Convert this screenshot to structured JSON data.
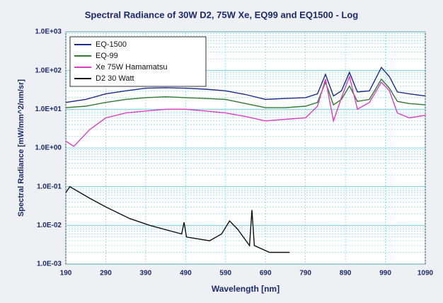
{
  "chart_data": {
    "type": "line",
    "title": "Spectral Radiance of 30W D2, 75W Xe, EQ99 and EQ1500 - Log",
    "x_label": "Wavelength [nm]",
    "y_label": "Spectral Radiance [mW/mm^2/nm/sr]",
    "xlim": [
      190,
      1090
    ],
    "xticks": [
      190,
      290,
      390,
      490,
      590,
      690,
      790,
      890,
      990,
      1090
    ],
    "ylim": [
      0.001,
      1000
    ],
    "log_y": true,
    "yticks": [
      {
        "value": 1000,
        "label": "1.0E+03"
      },
      {
        "value": 100,
        "label": "1.0E+02"
      },
      {
        "value": 10,
        "label": "1.0E+01"
      },
      {
        "value": 1,
        "label": "1.0E+00"
      },
      {
        "value": 0.1,
        "label": "1.0E-01"
      },
      {
        "value": 0.01,
        "label": "1.0E-02"
      },
      {
        "value": 0.001,
        "label": "1.0E-03"
      }
    ],
    "grid": true,
    "legend": "upper left",
    "series": [
      {
        "name": "EQ-1500",
        "color": "#1c2a8f",
        "x": [
          190,
          240,
          290,
          340,
          390,
          440,
          490,
          540,
          590,
          640,
          690,
          740,
          790,
          820,
          840,
          860,
          880,
          900,
          920,
          950,
          980,
          1000,
          1020,
          1050,
          1090
        ],
        "values": [
          15,
          18,
          25,
          30,
          35,
          36,
          35,
          33,
          30,
          24,
          18,
          19,
          20,
          25,
          80,
          22,
          30,
          90,
          28,
          30,
          120,
          70,
          28,
          25,
          22
        ]
      },
      {
        "name": "EQ-99",
        "color": "#2f7a2f",
        "x": [
          190,
          240,
          290,
          340,
          390,
          440,
          490,
          540,
          590,
          640,
          690,
          740,
          790,
          820,
          840,
          860,
          880,
          900,
          920,
          950,
          980,
          1000,
          1020,
          1050,
          1090
        ],
        "values": [
          11,
          12,
          15,
          18,
          20,
          21,
          20,
          19,
          18,
          14,
          11,
          11,
          12,
          15,
          50,
          13,
          18,
          40,
          16,
          18,
          60,
          35,
          16,
          14,
          13
        ]
      },
      {
        "name": "Xe 75W Hamamatsu",
        "color": "#e03cc4",
        "x": [
          190,
          210,
          250,
          290,
          340,
          390,
          440,
          490,
          540,
          590,
          640,
          690,
          740,
          790,
          820,
          840,
          860,
          880,
          900,
          920,
          950,
          980,
          1000,
          1020,
          1050,
          1090
        ],
        "values": [
          1.5,
          1.1,
          3,
          6,
          8,
          9,
          10,
          10,
          9,
          8,
          6.5,
          5,
          5.5,
          6,
          12,
          60,
          5,
          20,
          70,
          10,
          15,
          50,
          30,
          8,
          6,
          7
        ]
      },
      {
        "name": "D2 30 Watt",
        "color": "#111111",
        "x": [
          190,
          200,
          250,
          290,
          350,
          400,
          480,
          486,
          492,
          550,
          580,
          600,
          620,
          650,
          656,
          662,
          700,
          750
        ],
        "values": [
          0.07,
          0.1,
          0.05,
          0.03,
          0.015,
          0.01,
          0.006,
          0.012,
          0.005,
          0.004,
          0.006,
          0.013,
          0.008,
          0.003,
          0.025,
          0.003,
          0.002,
          0.002
        ]
      }
    ]
  }
}
